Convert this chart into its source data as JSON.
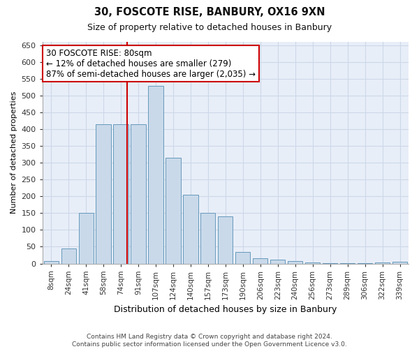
{
  "title1": "30, FOSCOTE RISE, BANBURY, OX16 9XN",
  "title2": "Size of property relative to detached houses in Banbury",
  "xlabel": "Distribution of detached houses by size in Banbury",
  "ylabel": "Number of detached properties",
  "categories": [
    "8sqm",
    "24sqm",
    "41sqm",
    "58sqm",
    "74sqm",
    "91sqm",
    "107sqm",
    "124sqm",
    "140sqm",
    "157sqm",
    "173sqm",
    "190sqm",
    "206sqm",
    "223sqm",
    "240sqm",
    "256sqm",
    "273sqm",
    "289sqm",
    "306sqm",
    "322sqm",
    "339sqm"
  ],
  "values": [
    7,
    45,
    150,
    415,
    415,
    415,
    530,
    315,
    205,
    150,
    140,
    35,
    15,
    12,
    8,
    3,
    2,
    1,
    1,
    4,
    5
  ],
  "bar_color": "#c9d9ea",
  "bar_edge_color": "#6699bb",
  "annotation_text": "30 FOSCOTE RISE: 80sqm\n← 12% of detached houses are smaller (279)\n87% of semi-detached houses are larger (2,035) →",
  "annotation_box_color": "#ffffff",
  "annotation_box_edge_color": "#cc0000",
  "vline_color": "#cc0000",
  "ylim": [
    0,
    660
  ],
  "yticks": [
    0,
    50,
    100,
    150,
    200,
    250,
    300,
    350,
    400,
    450,
    500,
    550,
    600,
    650
  ],
  "grid_color": "#ccd8e8",
  "background_color": "#e8eef8",
  "footnote1": "Contains HM Land Registry data © Crown copyright and database right 2024.",
  "footnote2": "Contains public sector information licensed under the Open Government Licence v3.0."
}
